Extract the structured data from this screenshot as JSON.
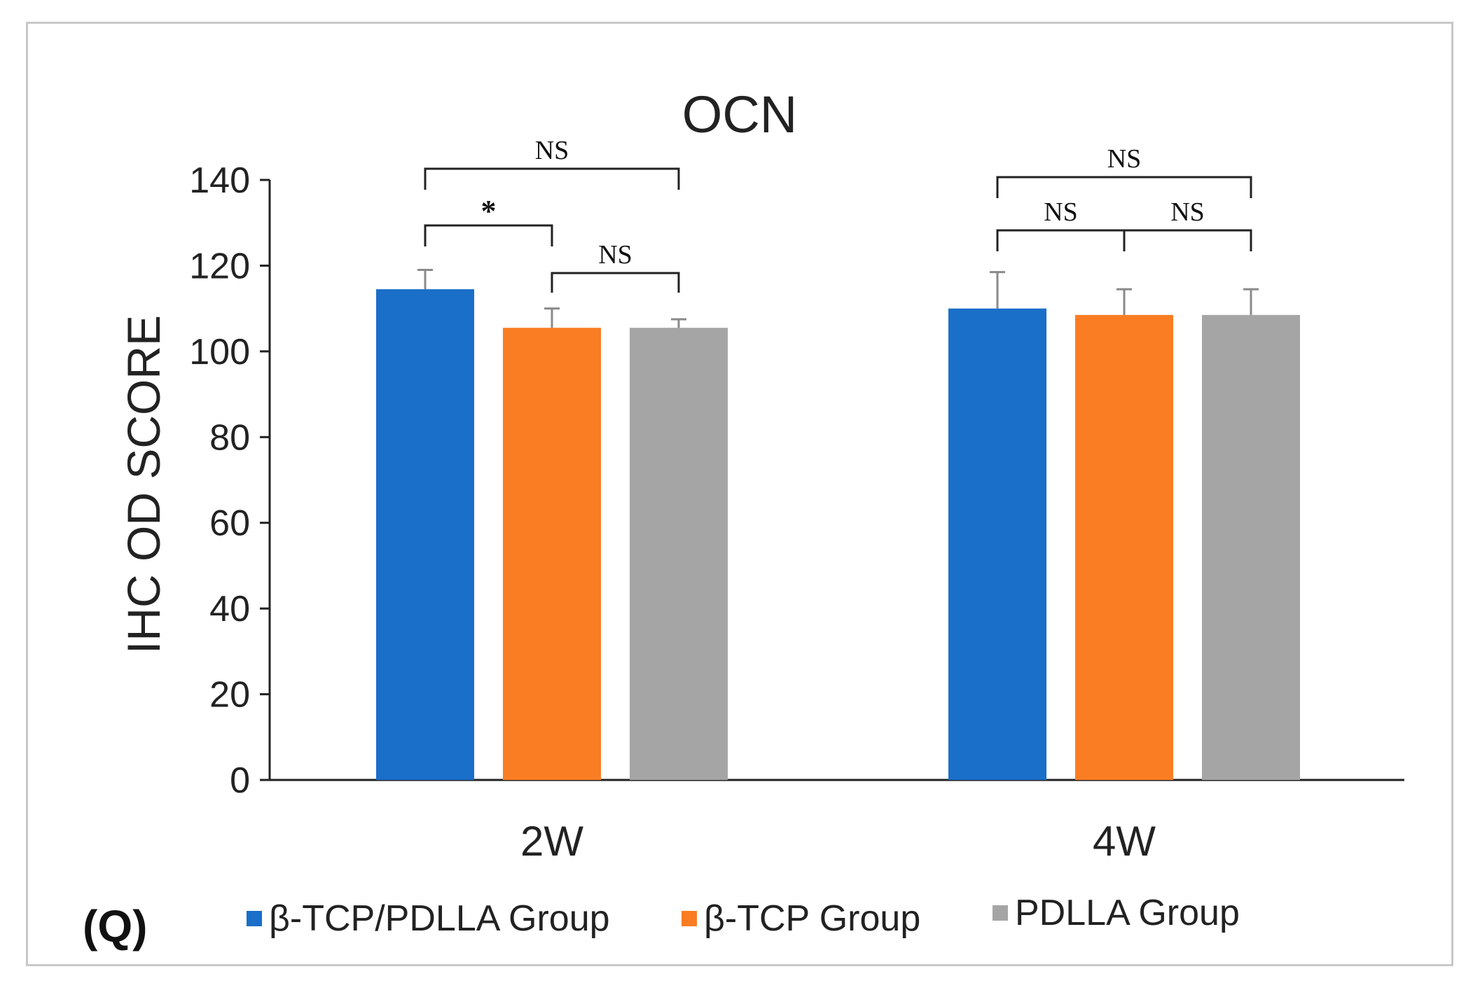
{
  "panel_label": "(Q)",
  "chart_data": {
    "type": "bar",
    "title": "OCN",
    "xlabel": "",
    "ylabel": "IHC OD SCORE",
    "ylim": [
      0,
      140
    ],
    "yticks": [
      0,
      20,
      40,
      60,
      80,
      100,
      120,
      140
    ],
    "categories": [
      "2W",
      "4W"
    ],
    "series": [
      {
        "name": "β-TCP/PDLLA Group",
        "color": "#1a6fc9",
        "values": [
          114.5,
          110
        ],
        "errors": [
          4.5,
          8.5
        ]
      },
      {
        "name": "β-TCP Group",
        "color": "#fa7d23",
        "values": [
          105.5,
          108.5
        ],
        "errors": [
          4.5,
          6
        ]
      },
      {
        "name": "PDLLA Group",
        "color": "#a5a5a5",
        "values": [
          105.5,
          108.5
        ],
        "errors": [
          2,
          6
        ]
      }
    ],
    "legend_position": "bottom",
    "significance": [
      {
        "category": "2W",
        "from": 0,
        "to": 2,
        "label": "NS",
        "level": 3
      },
      {
        "category": "2W",
        "from": 0,
        "to": 1,
        "label": "*",
        "level": 2
      },
      {
        "category": "2W",
        "from": 1,
        "to": 2,
        "label": "NS",
        "level": 1
      },
      {
        "category": "4W",
        "from": 0,
        "to": 2,
        "label": "NS",
        "level": 3
      },
      {
        "category": "4W",
        "from": 0,
        "to": 1,
        "label": "NS",
        "level": 2
      },
      {
        "category": "4W",
        "from": 1,
        "to": 2,
        "label": "NS",
        "level": 2
      }
    ]
  }
}
